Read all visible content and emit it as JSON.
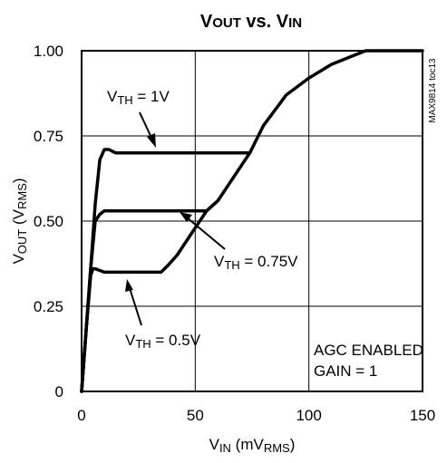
{
  "chart_data": {
    "type": "line",
    "title_parts": {
      "v1": "V",
      "s1": "OUT",
      "mid": " vs. ",
      "v2": "V",
      "s2": "IN"
    },
    "xlabel_parts": {
      "v": "V",
      "s": "IN",
      "rest": " (mV",
      "s2": "RMS",
      "end": ")"
    },
    "ylabel_parts": {
      "v": "V",
      "s": "OUT",
      "rest": " (V",
      "s2": "RMS",
      "end": ")"
    },
    "xlim": [
      0,
      150
    ],
    "ylim": [
      0,
      1.0
    ],
    "x_ticks": [
      0,
      50,
      100,
      150
    ],
    "x_tick_labels": [
      "0",
      "50",
      "100",
      "150"
    ],
    "y_ticks": [
      0,
      0.25,
      0.5,
      0.75,
      1.0
    ],
    "y_tick_labels": [
      "0",
      "0.25",
      "0.50",
      "0.75",
      "1.00"
    ],
    "grid": true,
    "side_label": "MAX9814 toc13",
    "annotations": {
      "agc_line1": "AGC ENABLED",
      "agc_line2": "GAIN = 1",
      "th1": {
        "v": "V",
        "s": "TH",
        "rest": " = 1V"
      },
      "th075": {
        "v": "V",
        "s": "TH",
        "rest": " = 0.75V"
      },
      "th05": {
        "v": "V",
        "s": "TH",
        "rest": " = 0.5V"
      }
    },
    "series": [
      {
        "x": [
          0,
          2,
          4,
          6,
          8,
          10,
          12,
          15,
          20,
          25,
          30,
          35,
          45,
          60,
          70,
          74,
          80,
          90,
          100,
          110,
          125,
          150
        ],
        "y": [
          0,
          0.18,
          0.36,
          0.55,
          0.68,
          0.71,
          0.71,
          0.7,
          0.7,
          0.7,
          0.7,
          0.7,
          0.7,
          0.7,
          0.7,
          0.7,
          0.78,
          0.87,
          0.92,
          0.96,
          1.0,
          1.0
        ]
      },
      {
        "x": [
          0,
          2,
          4,
          6,
          8,
          10,
          12,
          20,
          30,
          40,
          50,
          55,
          60,
          74
        ],
        "y": [
          0,
          0.18,
          0.36,
          0.5,
          0.52,
          0.53,
          0.53,
          0.53,
          0.53,
          0.53,
          0.53,
          0.53,
          0.56,
          0.7
        ]
      },
      {
        "x": [
          0,
          2,
          4,
          5,
          6,
          10,
          20,
          30,
          35,
          38,
          42,
          48,
          55,
          60
        ],
        "y": [
          0,
          0.18,
          0.34,
          0.36,
          0.36,
          0.35,
          0.35,
          0.35,
          0.35,
          0.37,
          0.4,
          0.46,
          0.53,
          0.56
        ]
      }
    ]
  }
}
